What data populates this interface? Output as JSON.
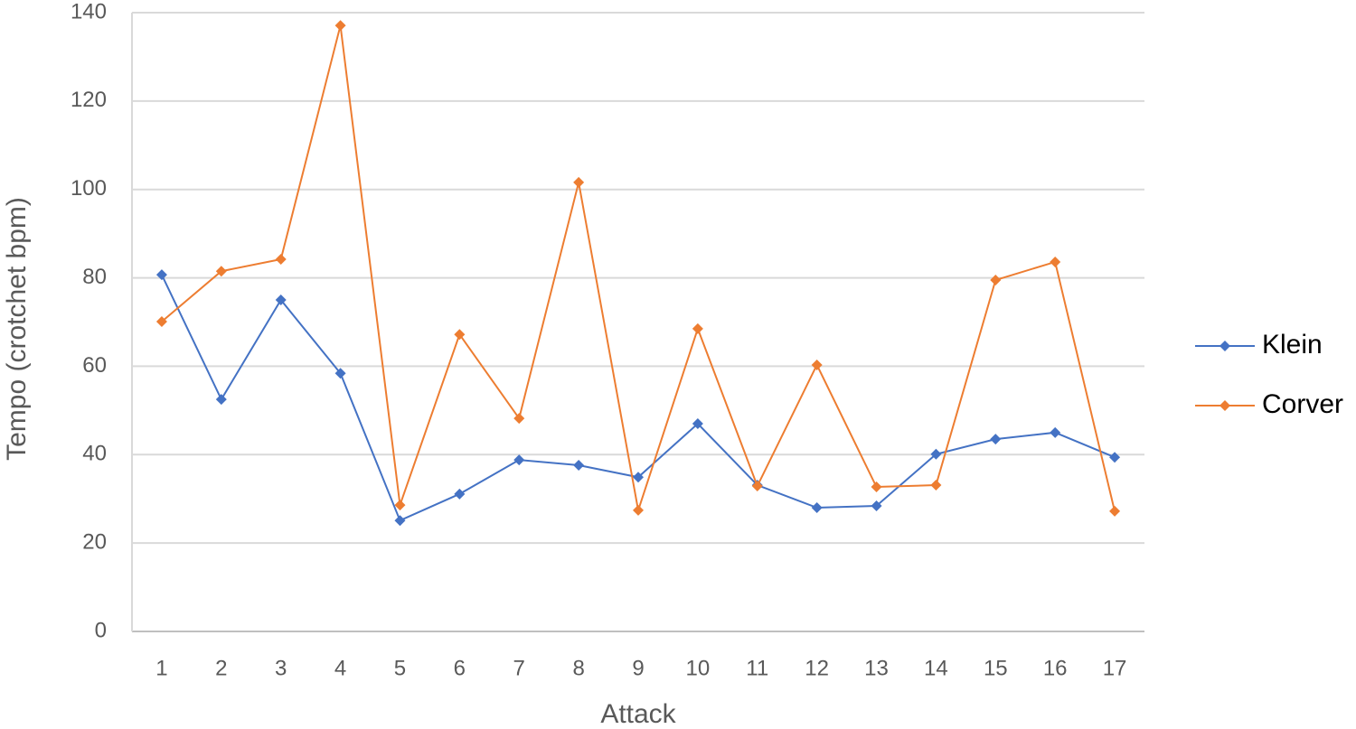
{
  "chart_data": {
    "type": "line",
    "x_label": "Attack",
    "y_label": "Tempo (crotchet bpm)",
    "categories": [
      "1",
      "2",
      "3",
      "4",
      "5",
      "6",
      "7",
      "8",
      "9",
      "10",
      "11",
      "12",
      "13",
      "14",
      "15",
      "16",
      "17"
    ],
    "series": [
      {
        "name": "Klein",
        "color": "#4472c4",
        "values": [
          80.7,
          52.5,
          75,
          58.4,
          25.1,
          31.1,
          38.8,
          37.6,
          34.9,
          47,
          33.1,
          28,
          28.4,
          40.1,
          43.5,
          45,
          39.4
        ]
      },
      {
        "name": "Corver",
        "color": "#ed7d31",
        "values": [
          70.1,
          81.5,
          84.2,
          137.1,
          28.6,
          67.2,
          48.2,
          101.6,
          27.4,
          68.5,
          32.9,
          60.3,
          32.7,
          33.1,
          79.5,
          83.6,
          27.2
        ]
      }
    ],
    "ylim": [
      0,
      140
    ],
    "yticks": [
      0,
      20,
      40,
      60,
      80,
      100,
      120,
      140
    ],
    "grid": true,
    "legend": "right"
  }
}
